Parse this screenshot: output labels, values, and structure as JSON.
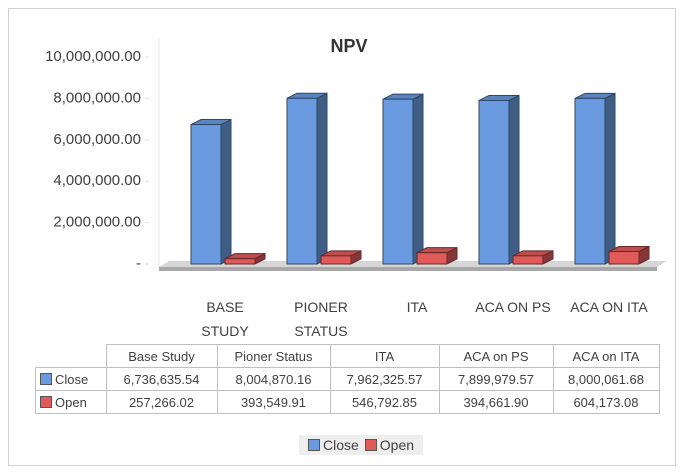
{
  "chart_data": {
    "type": "bar3d",
    "title": "NPV",
    "categories": [
      "BASE STUDY",
      "PIONER STATUS",
      "ITA",
      "ACA ON PS",
      "ACA ON ITA"
    ],
    "table_columns": [
      "Base Study",
      "Pioner Status",
      "ITA",
      "ACA on PS",
      "ACA on ITA"
    ],
    "series": [
      {
        "name": "Close",
        "color": "#6a9be0",
        "values": [
          6736635.54,
          8004870.16,
          7962325.57,
          7899979.57,
          8000061.68
        ],
        "value_labels": [
          "6,736,635.54",
          "8,004,870.16",
          "7,962,325.57",
          "7,899,979.57",
          "8,000,061.68"
        ]
      },
      {
        "name": "Open",
        "color": "#e05a5a",
        "values": [
          257266.02,
          393549.91,
          546792.85,
          394661.9,
          604173.08
        ],
        "value_labels": [
          "257,266.02",
          "393,549.91",
          "546,792.85",
          "394,661.90",
          "604,173.08"
        ]
      }
    ],
    "ylim": [
      0,
      10000000
    ],
    "yticks": [
      {
        "value": 0,
        "label": "-"
      },
      {
        "value": 2000000,
        "label": "2,000,000.00"
      },
      {
        "value": 4000000,
        "label": "4,000,000.00"
      },
      {
        "value": 6000000,
        "label": "6,000,000.00"
      },
      {
        "value": 8000000,
        "label": "8,000,000.00"
      },
      {
        "value": 10000000,
        "label": "10,000,000.00"
      }
    ],
    "grid": false,
    "legend": "bottom"
  }
}
